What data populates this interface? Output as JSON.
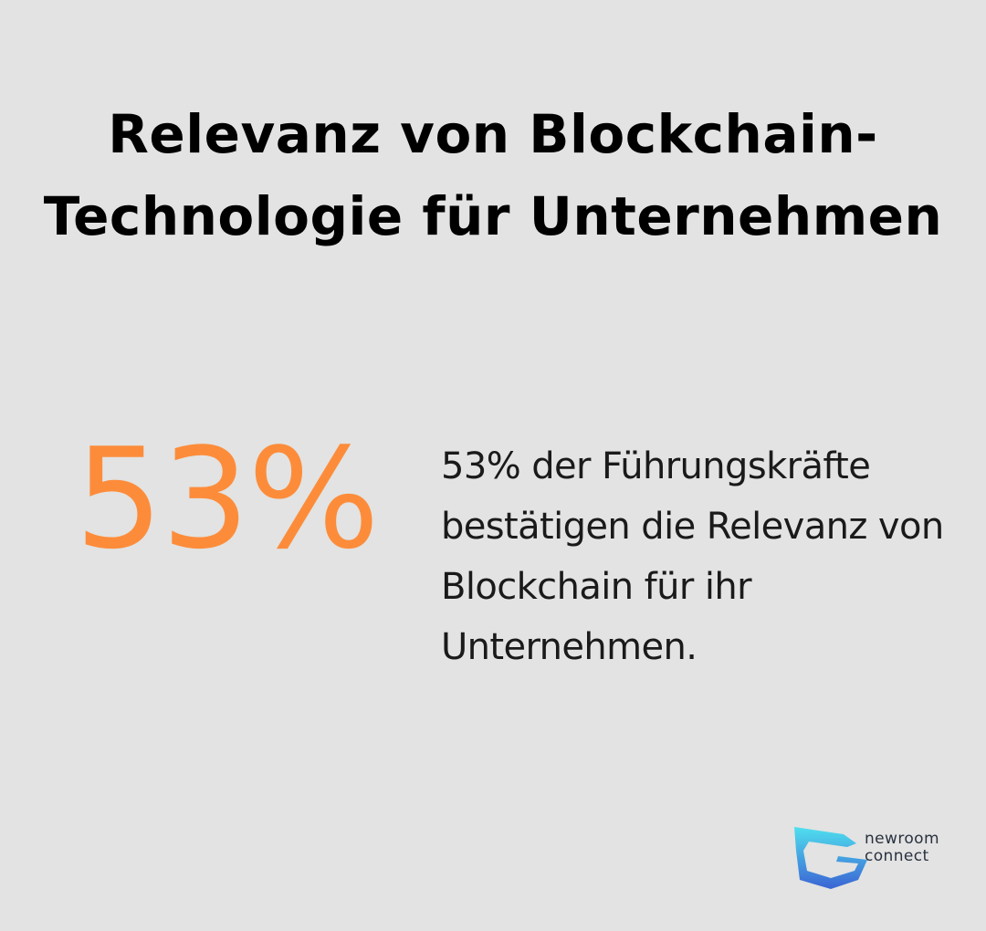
{
  "title": "Relevanz von Blockchain-Technologie für Unternehmen",
  "stat": {
    "value": "53%",
    "description": "53% der Führungskräfte bestätigen die Relevanz von Blockchain für ihr Unternehmen."
  },
  "brand": {
    "line1": "newroom",
    "line2": "connect",
    "icon": "newroom-connect-logo-icon"
  },
  "colors": {
    "background": "#e2e3e2",
    "accent": "#fd8c3a",
    "text": "#000000",
    "logo_cyan": "#48d8f0",
    "logo_blue": "#3c6fd6"
  }
}
